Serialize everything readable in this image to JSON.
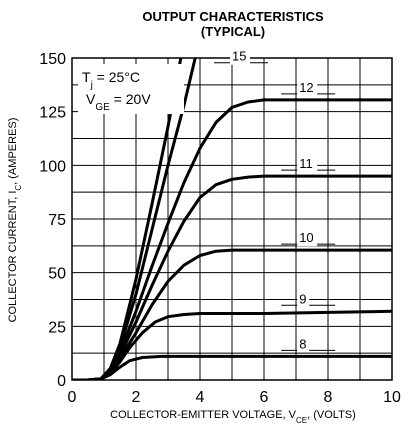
{
  "chart_data": {
    "type": "line",
    "title": "OUTPUT CHARACTERISTICS",
    "subtitle": "(TYPICAL)",
    "xlabel": "COLLECTOR-EMITTER VOLTAGE, V",
    "xlabel_sub": "CE",
    "xlabel_suffix": ", (VOLTS)",
    "ylabel": "COLLECTOR CURRENT, I",
    "ylabel_sub": "C",
    "ylabel_suffix": ", (AMPERES)",
    "xlim": [
      0,
      10
    ],
    "ylim": [
      0,
      150
    ],
    "x_ticks": [
      0,
      2,
      4,
      6,
      8,
      10
    ],
    "y_ticks": [
      0,
      25,
      50,
      75,
      100,
      125,
      150
    ],
    "grid": true,
    "conditions": [
      {
        "prefix": "T",
        "sub": "j",
        "suffix": " = 25°C"
      },
      {
        "prefix": "V",
        "sub": "GE",
        "suffix": " = 20V"
      }
    ],
    "series": [
      {
        "name": "8",
        "points": [
          [
            0,
            0
          ],
          [
            0.5,
            0
          ],
          [
            0.9,
            0.5
          ],
          [
            1.2,
            2.5
          ],
          [
            1.5,
            6
          ],
          [
            1.8,
            9
          ],
          [
            2.2,
            10.5
          ],
          [
            2.8,
            11
          ],
          [
            4,
            11
          ],
          [
            10,
            11
          ]
        ]
      },
      {
        "name": "9",
        "points": [
          [
            0,
            0
          ],
          [
            0.5,
            0
          ],
          [
            0.9,
            0.5
          ],
          [
            1.2,
            3
          ],
          [
            1.5,
            8.5
          ],
          [
            1.8,
            15
          ],
          [
            2.2,
            22
          ],
          [
            2.6,
            27
          ],
          [
            3,
            29.5
          ],
          [
            3.5,
            30.5
          ],
          [
            4,
            31
          ],
          [
            6,
            31
          ],
          [
            8,
            31.5
          ],
          [
            10,
            32
          ]
        ]
      },
      {
        "name": "10",
        "points": [
          [
            0,
            0
          ],
          [
            0.5,
            0
          ],
          [
            0.9,
            0.5
          ],
          [
            1.2,
            3.5
          ],
          [
            1.5,
            10
          ],
          [
            2,
            22
          ],
          [
            2.5,
            35
          ],
          [
            3,
            46
          ],
          [
            3.5,
            53.5
          ],
          [
            4,
            58
          ],
          [
            4.5,
            60
          ],
          [
            5,
            60.5
          ],
          [
            6,
            60.5
          ],
          [
            10,
            60.5
          ]
        ]
      },
      {
        "name": "11",
        "points": [
          [
            0,
            0
          ],
          [
            0.5,
            0
          ],
          [
            0.9,
            0.5
          ],
          [
            1.2,
            4
          ],
          [
            1.5,
            11.5
          ],
          [
            2,
            27
          ],
          [
            2.5,
            44
          ],
          [
            3,
            60
          ],
          [
            3.5,
            74
          ],
          [
            4,
            85
          ],
          [
            4.5,
            91
          ],
          [
            5,
            93.5
          ],
          [
            5.5,
            94.5
          ],
          [
            6,
            95
          ],
          [
            10,
            95
          ]
        ]
      },
      {
        "name": "12",
        "points": [
          [
            0,
            0
          ],
          [
            0.5,
            0
          ],
          [
            0.9,
            0.5
          ],
          [
            1.2,
            4.5
          ],
          [
            1.5,
            13
          ],
          [
            2,
            32
          ],
          [
            2.5,
            53
          ],
          [
            3,
            73
          ],
          [
            3.5,
            92
          ],
          [
            4,
            108
          ],
          [
            4.5,
            120
          ],
          [
            5,
            127
          ],
          [
            5.5,
            129.5
          ],
          [
            6,
            130.5
          ],
          [
            10,
            130.5
          ]
        ]
      },
      {
        "name": "",
        "points": [
          [
            0,
            0
          ],
          [
            0.5,
            0
          ],
          [
            0.9,
            0.5
          ],
          [
            1.2,
            5
          ],
          [
            1.5,
            15
          ],
          [
            2,
            40
          ],
          [
            2.5,
            70
          ],
          [
            3,
            100
          ],
          [
            3.5,
            128
          ],
          [
            3.85,
            150
          ]
        ]
      },
      {
        "name": "15",
        "points": [
          [
            0,
            0
          ],
          [
            0.5,
            0
          ],
          [
            0.9,
            0.5
          ],
          [
            1.2,
            5.5
          ],
          [
            1.5,
            17
          ],
          [
            2,
            47
          ],
          [
            2.5,
            82
          ],
          [
            3,
            118
          ],
          [
            3.4,
            150
          ]
        ]
      }
    ]
  }
}
